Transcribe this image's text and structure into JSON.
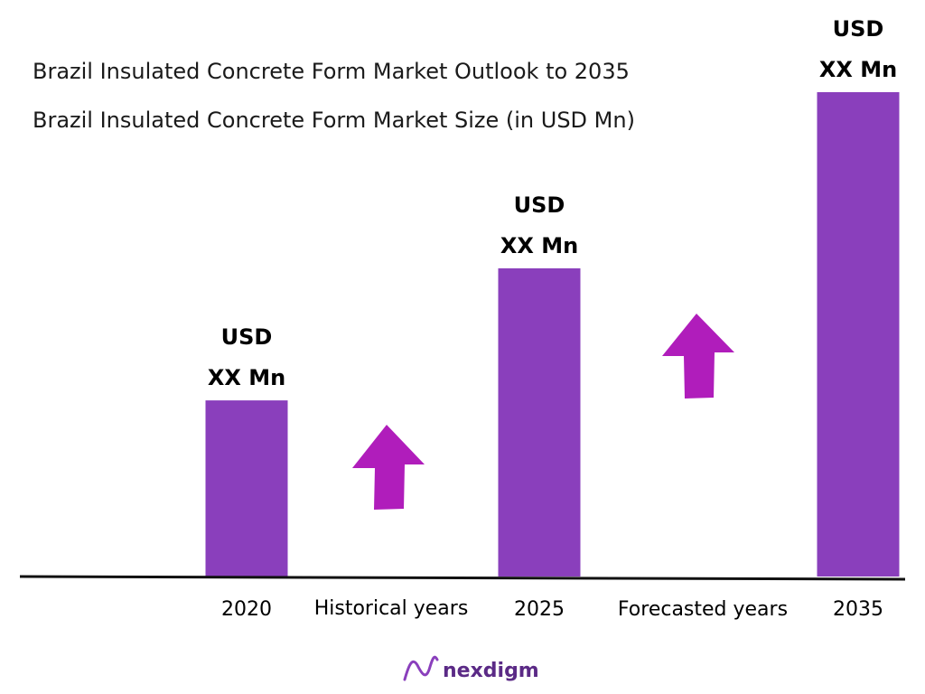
{
  "chart_data": {
    "type": "bar",
    "title": "Brazil Insulated Concrete Form Market Outlook to 2035",
    "subtitle": "Brazil Insulated Concrete Form Market Size (in USD Mn)",
    "categories": [
      "2020",
      "2025",
      "2035"
    ],
    "series": [
      {
        "values": [
          2,
          3.5,
          5.5
        ],
        "labels": [
          [
            "USD",
            "XX Mn"
          ],
          [
            "USD",
            "XX Mn"
          ],
          [
            "USD",
            "XX Mn"
          ]
        ]
      }
    ],
    "ylim": [
      0,
      5.5
    ],
    "grid": false,
    "legend": "none",
    "period_labels": [
      "Historical years",
      "Forecasted years"
    ],
    "bar_color": "#8a3fbc",
    "arrow_color": "#b01dbb",
    "axis_color": "#111111"
  },
  "brand": {
    "name": "nexdigm",
    "color": "#5b2a86",
    "icon": "nexdigm-logo-icon"
  }
}
